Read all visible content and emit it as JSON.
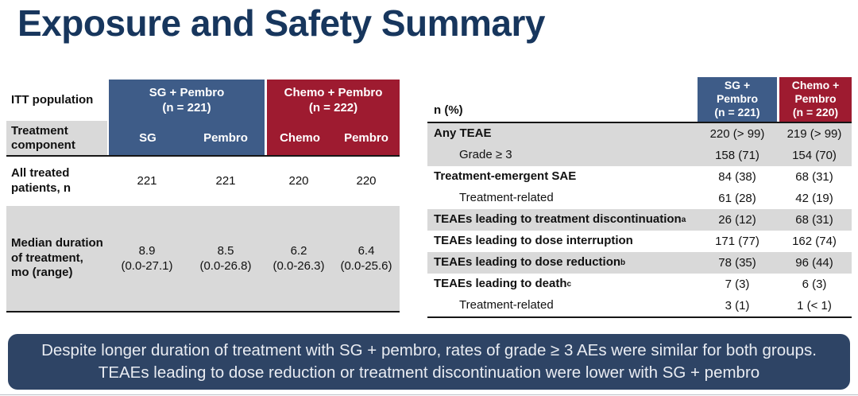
{
  "colors": {
    "title": "#17365D",
    "header_blue": "#3E5C88",
    "header_red": "#9E1B30",
    "row_gray": "#D9D9D9",
    "banner_bg": "#2E4465",
    "banner_text": "#E9ECF2"
  },
  "title": "Exposure and Safety Summary",
  "exposure_table": {
    "corner_label": "ITT population",
    "component_row_label": "Treatment component",
    "groups": [
      {
        "name": "SG + Pembro",
        "n": "(n = 221)"
      },
      {
        "name": "Chemo + Pembro",
        "n": "(n = 222)"
      }
    ],
    "components": [
      "SG",
      "Pembro",
      "Chemo",
      "Pembro"
    ],
    "rows": [
      {
        "label": "All treated patients, n",
        "values": [
          "221",
          "221",
          "220",
          "220"
        ]
      },
      {
        "label": "Median duration of treatment, mo (range)",
        "values": [
          "8.9",
          "8.5",
          "6.2",
          "6.4"
        ],
        "ranges": [
          "(0.0-27.1)",
          "(0.0-26.8)",
          "(0.0-26.3)",
          "(0.0-25.6)"
        ]
      }
    ]
  },
  "safety_table": {
    "corner_label": "n (%)",
    "groups": [
      {
        "line1": "SG +",
        "line2": "Pembro",
        "n": "(n = 221)"
      },
      {
        "line1": "Chemo +",
        "line2": "Pembro",
        "n": "(n = 220)"
      }
    ],
    "rows": [
      {
        "label": "Any TEAE",
        "values": [
          "220 (> 99)",
          "219 (> 99)"
        ]
      },
      {
        "label": "Grade ≥ 3",
        "values": [
          "158 (71)",
          "154 (70)"
        ]
      },
      {
        "label": "Treatment-emergent SAE",
        "values": [
          "84 (38)",
          "68 (31)"
        ]
      },
      {
        "label": "Treatment-related",
        "values": [
          "61 (28)",
          "42 (19)"
        ]
      },
      {
        "label": "TEAEs leading to treatment discontinuation",
        "sup": "a",
        "values": [
          "26 (12)",
          "68 (31)"
        ]
      },
      {
        "label": "TEAEs leading to dose interruption",
        "values": [
          "171 (77)",
          "162 (74)"
        ]
      },
      {
        "label": "TEAEs leading to dose reduction",
        "sup": "b",
        "values": [
          "78 (35)",
          "96 (44)"
        ]
      },
      {
        "label": "TEAEs leading to death",
        "sup": "c",
        "values": [
          "7 (3)",
          "6 (3)"
        ]
      },
      {
        "label": "Treatment-related",
        "values": [
          "3 (1)",
          "1 (< 1)"
        ]
      }
    ]
  },
  "banner": {
    "text": "Despite longer duration of treatment with SG + pembro, rates of grade ≥ 3 AEs were similar for both groups. TEAEs leading to dose reduction or treatment discontinuation were lower with SG + pembro"
  }
}
